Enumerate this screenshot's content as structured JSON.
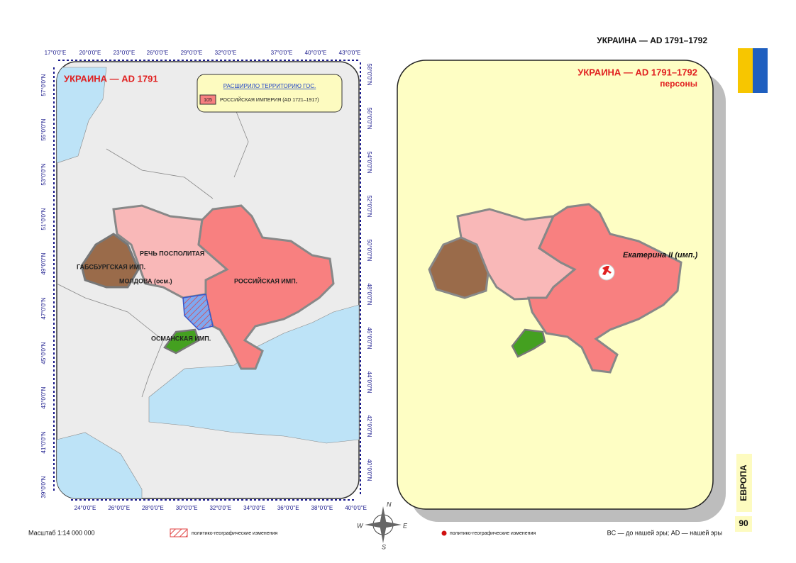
{
  "header": {
    "title": "УКРАИНА — AD 1791–1792"
  },
  "left_map": {
    "title": "УКРАИНА — AD 1791",
    "legend": {
      "heading": "РАСШИРИЛО ТЕРРИТОРИЮ ГОС.",
      "code": "105",
      "label": "РОССИЙСКАЯ ИМПЕРИЯ (AD 1721–1917)"
    },
    "regions": [
      "РЕЧЬ ПОСПОЛИТАЯ",
      "ГАБСБУРГСКАЯ ИМП.",
      "МОЛДОВА (осм.)",
      "РОССИЙСКАЯ ИМП.",
      "ОСМАНСКАЯ ИМП."
    ],
    "lon_top": [
      "17°0'0\"E",
      "20°0'0\"E",
      "23°0'0\"E",
      "26°0'0\"E",
      "29°0'0\"E",
      "32°0'0\"E",
      "37°0'0\"E",
      "40°0'0\"E",
      "43°0'0\"E"
    ],
    "lon_bottom": [
      "24°0'0\"E",
      "26°0'0\"E",
      "28°0'0\"E",
      "30°0'0\"E",
      "32°0'0\"E",
      "34°0'0\"E",
      "36°0'0\"E",
      "38°0'0\"E",
      "40°0'0\"E"
    ],
    "lat_left": [
      "57°0'0\"N",
      "55°0'0\"N",
      "53°0'0\"N",
      "51°0'0\"N",
      "49°0'0\"N",
      "47°0'0\"N",
      "45°0'0\"N",
      "43°0'0\"N",
      "41°0'0\"N",
      "39°0'0\"N"
    ],
    "lat_right": [
      "58°0'0\"N",
      "56°0'0\"N",
      "54°0'0\"N",
      "52°0'0\"N",
      "50°0'0\"N",
      "48°0'0\"N",
      "46°0'0\"N",
      "44°0'0\"N",
      "42°0'0\"N",
      "40°0'0\"N"
    ]
  },
  "right_map": {
    "title": "УКРАИНА — AD 1791–1792",
    "subtitle": "персоны",
    "persons": [
      "Екатерина II (имп.)"
    ]
  },
  "footer": {
    "scale": "Масштаб 1:14 000 000",
    "legend_changes": "политико-географические изменения",
    "legend_points": "политико-географические изменения",
    "era_note": "BC — до нашей эры; AD — нашей эры"
  },
  "sidebar": {
    "section": "ЕВРОПА",
    "page": "90"
  },
  "compass": [
    "N",
    "E",
    "S",
    "W"
  ]
}
